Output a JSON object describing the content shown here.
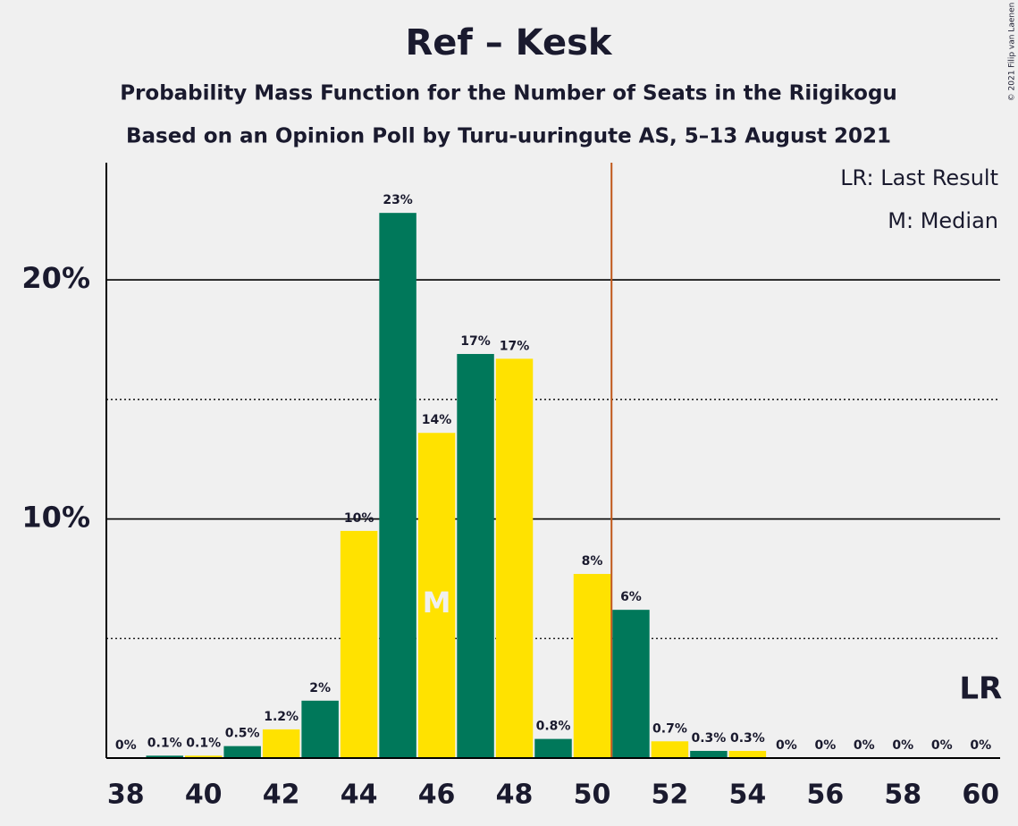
{
  "chart_data": {
    "type": "bar",
    "title": "Ref – Kesk",
    "subtitle": [
      "Probability Mass Function for the Number of Seats in the Riigikogu",
      "Based on an Opinion Poll by Turu-uuringute AS, 5–13 August 2021"
    ],
    "copyright": "© 2021 Filip van Laenen",
    "x": [
      38,
      39,
      40,
      41,
      42,
      43,
      44,
      45,
      46,
      47,
      48,
      49,
      50,
      51,
      52,
      53,
      54,
      55,
      56,
      57,
      58,
      59,
      60
    ],
    "values": [
      0,
      0.1,
      0.1,
      0.5,
      1.2,
      2.4,
      9.5,
      22.8,
      13.6,
      16.9,
      16.7,
      0.8,
      7.7,
      6.2,
      0.7,
      0.3,
      0.3,
      0,
      0,
      0,
      0,
      0,
      0
    ],
    "value_labels": [
      "0%",
      "0.1%",
      "0.1%",
      "0.5%",
      "1.2%",
      "2%",
      "10%",
      "23%",
      "14%",
      "17%",
      "17%",
      "0.8%",
      "8%",
      "6%",
      "0.7%",
      "0.3%",
      "0.3%",
      "0%",
      "0%",
      "0%",
      "0%",
      "0%",
      "0%"
    ],
    "colors": [
      "#ffe200",
      "#00785a"
    ],
    "xlim": [
      37.5,
      60.5
    ],
    "xticks": [
      38,
      40,
      42,
      44,
      46,
      48,
      50,
      52,
      54,
      56,
      58,
      60
    ],
    "ylim": [
      0,
      24.9
    ],
    "yticks": [
      {
        "value": 10,
        "label": "10%"
      },
      {
        "value": 20,
        "label": "20%"
      }
    ],
    "minor_yticks": [
      5,
      15
    ],
    "grid": true,
    "threshold": {
      "x": 50.5,
      "color": "#c0581a"
    },
    "median": {
      "x": 46,
      "label": "M"
    },
    "last_result": {
      "x": 60,
      "label": "LR"
    },
    "legend": [
      "LR: Last Result",
      "M: Median"
    ]
  }
}
